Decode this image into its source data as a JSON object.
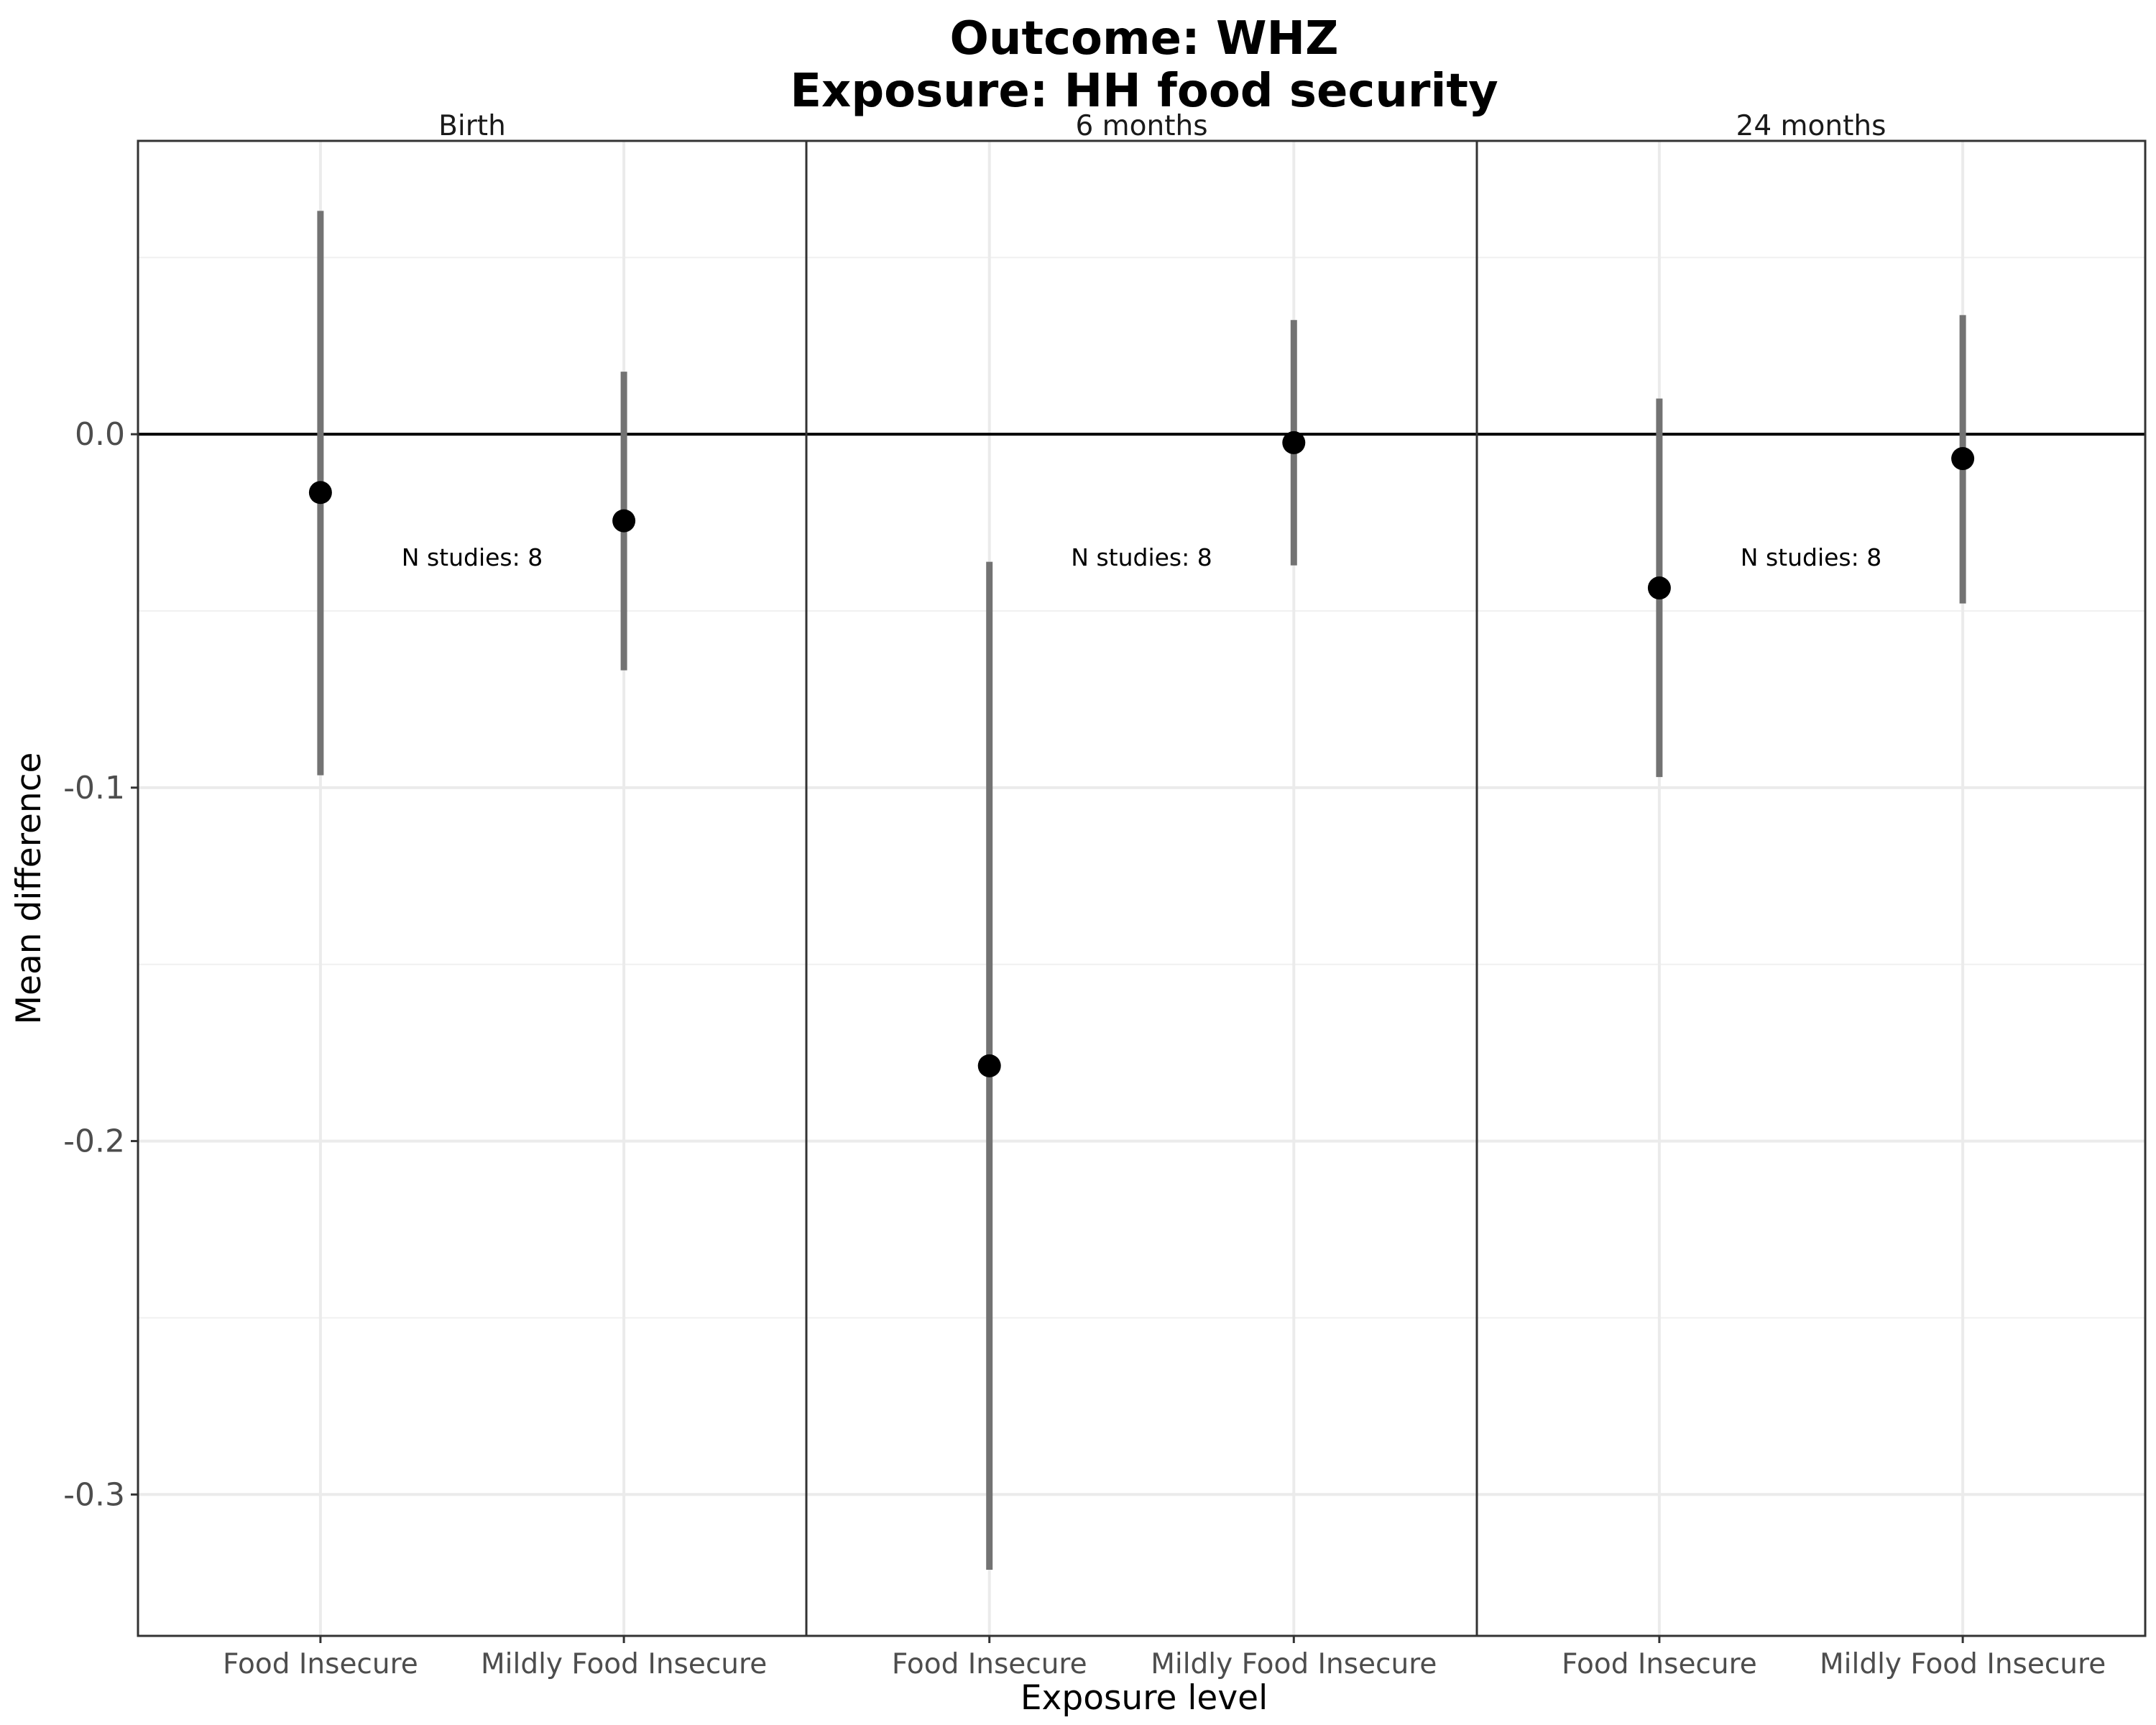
{
  "chart_data": {
    "type": "scatter",
    "title": "Outcome: WHZ",
    "subtitle": "Exposure: HH food security",
    "xlabel": "Exposure level",
    "ylabel": "Mean difference",
    "ylim": [
      -0.34,
      0.083
    ],
    "yticks": [
      0.0,
      -0.1,
      -0.2,
      -0.3
    ],
    "ytick_labels": [
      "0.0",
      "-0.1",
      "-0.2",
      "-0.3"
    ],
    "reference_line": 0.0,
    "grid": true,
    "categories": [
      "Food Insecure",
      "Mildly Food Insecure"
    ],
    "panels": [
      {
        "label": "Birth",
        "annotation": "N studies: 8",
        "points": [
          {
            "category": "Food Insecure",
            "estimate": -0.0165,
            "ci_lower": -0.0965,
            "ci_upper": 0.0632
          },
          {
            "category": "Mildly Food Insecure",
            "estimate": -0.0245,
            "ci_lower": -0.0668,
            "ci_upper": 0.0177
          }
        ]
      },
      {
        "label": "6 months",
        "annotation": "N studies: 8",
        "points": [
          {
            "category": "Food Insecure",
            "estimate": -0.1787,
            "ci_lower": -0.3213,
            "ci_upper": -0.0361
          },
          {
            "category": "Mildly Food Insecure",
            "estimate": -0.0024,
            "ci_lower": -0.0371,
            "ci_upper": 0.0323
          }
        ]
      },
      {
        "label": "24 months",
        "annotation": "N studies: 8",
        "points": [
          {
            "category": "Food Insecure",
            "estimate": -0.0435,
            "ci_lower": -0.097,
            "ci_upper": 0.0101
          },
          {
            "category": "Mildly Food Insecure",
            "estimate": -0.0069,
            "ci_lower": -0.0479,
            "ci_upper": 0.0337
          }
        ]
      }
    ]
  }
}
